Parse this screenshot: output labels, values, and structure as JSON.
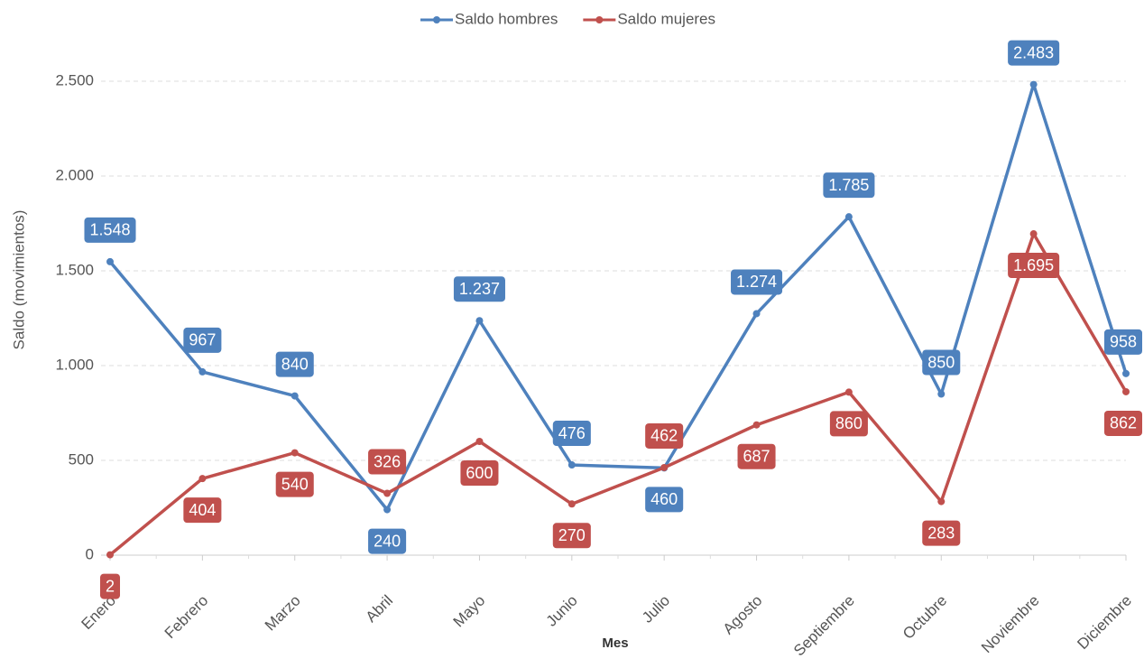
{
  "chart_data": {
    "type": "line",
    "x_label": "Mes",
    "y_label": "Saldo (movimientos)",
    "categories": [
      "Enero",
      "Febrero",
      "Marzo",
      "Abril",
      "Mayo",
      "Junio",
      "Julio",
      "Agosto",
      "Septiembre",
      "Octubre",
      "Noviembre",
      "Diciembre"
    ],
    "series": [
      {
        "name": "Saldo hombres",
        "color": "#4e81bd",
        "values": [
          1548,
          967,
          840,
          240,
          1237,
          476,
          460,
          1274,
          1785,
          850,
          2483,
          958
        ],
        "value_labels": [
          "1.548",
          "967",
          "840",
          "240",
          "1.237",
          "476",
          "460",
          "1.274",
          "1.785",
          "850",
          "2.483",
          "958"
        ]
      },
      {
        "name": "Saldo mujeres",
        "color": "#c0504d",
        "values": [
          2,
          404,
          540,
          326,
          600,
          270,
          462,
          687,
          860,
          283,
          1695,
          862
        ],
        "value_labels": [
          "2",
          "404",
          "540",
          "326",
          "600",
          "270",
          "462",
          "687",
          "860",
          "283",
          "1.695",
          "862"
        ]
      }
    ],
    "ylim": [
      0,
      2500
    ],
    "yticks": [
      0,
      500,
      {
        "value": 1000,
        "label": "1.000"
      },
      {
        "value": 1500,
        "label": "1.500"
      },
      {
        "value": 2000,
        "label": "2.000"
      },
      {
        "value": 2500,
        "label": "2.500"
      }
    ],
    "grid": true,
    "legend": "top"
  }
}
